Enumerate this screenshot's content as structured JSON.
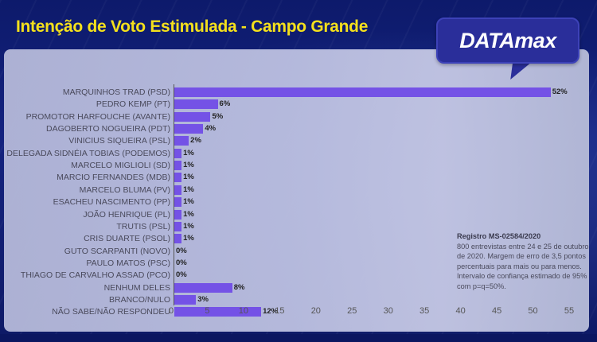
{
  "header": {
    "title": "Intenção de Voto Estimulada - Campo Grande",
    "logo": "DATAmax"
  },
  "note": {
    "registro": "Registro MS-02584/2020",
    "text": "800 entrevistas entre 24 e 25 de outubro de 2020. Margem de erro de 3,5 pontos percentuais para mais ou para menos. Intervalo de confiança estimado de 95% com p=q=50%."
  },
  "colors": {
    "bar": "#7452e6",
    "title": "#f4e01c",
    "background": "#14237f",
    "logo_bg": "#2a2e9a"
  },
  "chart_data": {
    "type": "bar",
    "orientation": "horizontal",
    "title": "Intenção de Voto Estimulada - Campo Grande",
    "xlabel": "",
    "ylabel": "",
    "xlim": [
      0,
      55
    ],
    "xticks": [
      0,
      5,
      10,
      15,
      20,
      25,
      30,
      35,
      40,
      45,
      50,
      55
    ],
    "grid": false,
    "legend": "none",
    "categories": [
      "MARQUINHOS TRAD (PSD)",
      "PEDRO KEMP (PT)",
      "PROMOTOR HARFOUCHE (AVANTE)",
      "DAGOBERTO NOGUEIRA (PDT)",
      "VINICIUS SIQUEIRA (PSL)",
      "DELEGADA SIDNÉIA TOBIAS (PODEMOS)",
      "MARCELO MIGLIOLI (SD)",
      "MARCIO FERNANDES (MDB)",
      "MARCELO BLUMA (PV)",
      "ESACHEU NASCIMENTO (PP)",
      "JOÃO HENRIQUE (PL)",
      "TRUTIS (PSL)",
      "CRIS DUARTE (PSOL)",
      "GUTO SCARPANTI (NOVO)",
      "PAULO MATOS (PSC)",
      "THIAGO DE CARVALHO ASSAD (PCO)",
      "NENHUM DELES",
      "BRANCO/NULO",
      "NÃO SABE/NÃO RESPONDEU"
    ],
    "values": [
      52,
      6,
      5,
      4,
      2,
      1,
      1,
      1,
      1,
      1,
      1,
      1,
      1,
      0,
      0,
      0,
      8,
      3,
      12
    ],
    "value_labels": [
      "52%",
      "6%",
      "5%",
      "4%",
      "2%",
      "1%",
      "1%",
      "1%",
      "1%",
      "1%",
      "1%",
      "1%",
      "1%",
      "0%",
      "0%",
      "0%",
      "8%",
      "3%",
      "12%"
    ]
  }
}
